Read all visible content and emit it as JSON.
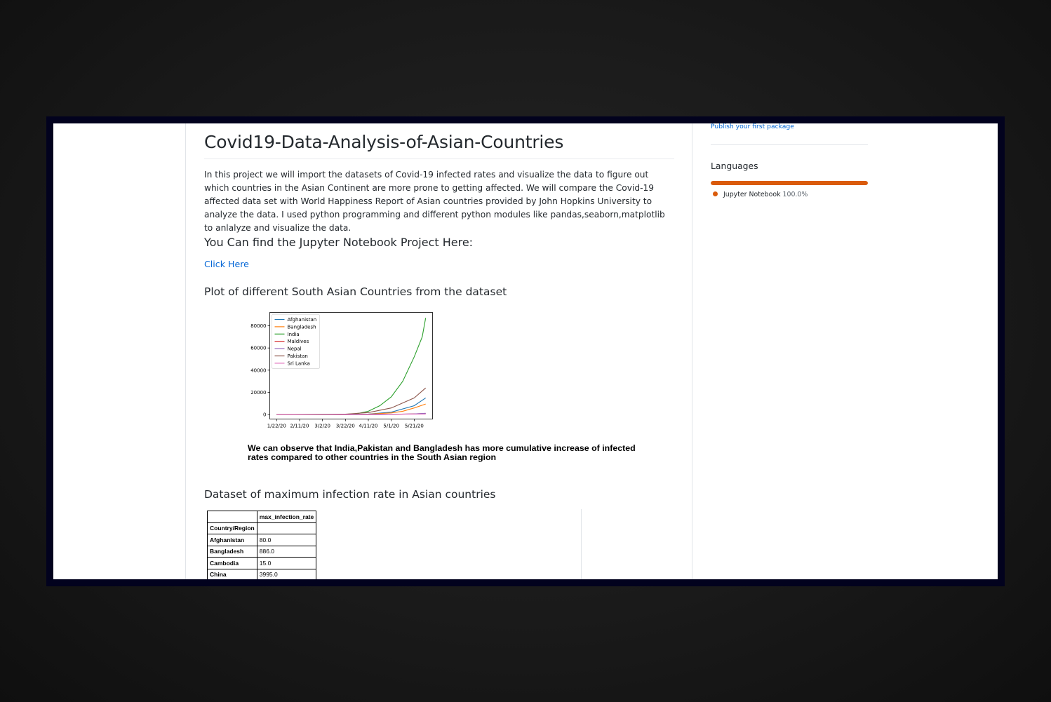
{
  "repo": {
    "title": "Covid19-Data-Analysis-of-Asian-Countries",
    "description": "In this project we will import the datasets of Covid-19 infected rates and visualize the data to figure out which countries in the Asian Continent are more prone to getting affected. We will compare the Covid-19 affected data set with World Happiness Report of Asian countries provided by John Hopkins University to analyze the data. I used python programming and different python modules like pandas,seaborn,matplotlib to anlalyze and visualize the data.",
    "notebook_heading": "You Can find the Jupyter Notebook Project Here:",
    "link_label": "Click Here",
    "plot_heading": "Plot of different South Asian Countries from the dataset",
    "observation": "We can observe that India,Pakistan and Bangladesh has more cumulative increase of infected rates compared to other countries in the South Asian region",
    "dataset_heading": "Dataset of maximum infection rate in Asian countries"
  },
  "table": {
    "column_header": "max_infection_rate",
    "index_header": "Country/Region",
    "rows": [
      {
        "country": "Afghanistan",
        "value": "80.0"
      },
      {
        "country": "Bangladesh",
        "value": "886.0"
      },
      {
        "country": "Cambodia",
        "value": "15.0"
      },
      {
        "country": "China",
        "value": "3995.0"
      }
    ]
  },
  "sidebar": {
    "publish_link": "Publish your first package",
    "languages_title": "Languages",
    "language": {
      "name": "Jupyter Notebook",
      "percent": "100.0%",
      "fraction": 1.0,
      "color": "#DA5B0B"
    }
  },
  "chart_data": {
    "type": "line",
    "title": "",
    "xlabel": "",
    "ylabel": "",
    "x_ticks": [
      "1/22/20",
      "2/11/20",
      "3/2/20",
      "3/22/20",
      "4/11/20",
      "5/1/20",
      "5/21/20"
    ],
    "y_ticks": [
      0,
      20000,
      40000,
      60000,
      80000
    ],
    "ylim": [
      -4000,
      92000
    ],
    "legend_position": "upper-left",
    "grid": false,
    "series": [
      {
        "name": "Afghanistan",
        "color": "#1f77b4",
        "points": [
          [
            "1/22/20",
            0
          ],
          [
            "3/22/20",
            0
          ],
          [
            "4/11/20",
            500
          ],
          [
            "5/1/20",
            2200
          ],
          [
            "5/21/20",
            8000
          ],
          [
            "5/31/20",
            15000
          ]
        ]
      },
      {
        "name": "Bangladesh",
        "color": "#ff7f0e",
        "points": [
          [
            "1/22/20",
            0
          ],
          [
            "3/22/20",
            0
          ],
          [
            "4/11/20",
            400
          ],
          [
            "5/1/20",
            1500
          ],
          [
            "5/11/20",
            3000
          ],
          [
            "5/21/20",
            6000
          ],
          [
            "5/31/20",
            9500
          ]
        ]
      },
      {
        "name": "India",
        "color": "#2ca02c",
        "points": [
          [
            "1/22/20",
            0
          ],
          [
            "3/22/20",
            300
          ],
          [
            "4/1/20",
            800
          ],
          [
            "4/11/20",
            3000
          ],
          [
            "4/21/20",
            8000
          ],
          [
            "5/1/20",
            16000
          ],
          [
            "5/11/20",
            30000
          ],
          [
            "5/21/20",
            52000
          ],
          [
            "5/28/20",
            70000
          ],
          [
            "5/31/20",
            87000
          ]
        ]
      },
      {
        "name": "Maldives",
        "color": "#d62728",
        "points": [
          [
            "1/22/20",
            0
          ],
          [
            "4/21/20",
            0
          ],
          [
            "5/21/20",
            600
          ],
          [
            "5/31/20",
            1000
          ]
        ]
      },
      {
        "name": "Nepal",
        "color": "#9467bd",
        "points": [
          [
            "1/22/20",
            0
          ],
          [
            "4/21/20",
            0
          ],
          [
            "5/21/20",
            600
          ],
          [
            "5/31/20",
            1200
          ]
        ]
      },
      {
        "name": "Pakistan",
        "color": "#8c564b",
        "points": [
          [
            "1/22/20",
            0
          ],
          [
            "3/2/20",
            0
          ],
          [
            "3/22/20",
            400
          ],
          [
            "4/11/20",
            1800
          ],
          [
            "5/1/20",
            6000
          ],
          [
            "5/21/20",
            15000
          ],
          [
            "5/31/20",
            24000
          ]
        ]
      },
      {
        "name": "Sri Lanka",
        "color": "#e377c2",
        "points": [
          [
            "1/22/20",
            0
          ],
          [
            "5/31/20",
            500
          ]
        ]
      }
    ]
  }
}
